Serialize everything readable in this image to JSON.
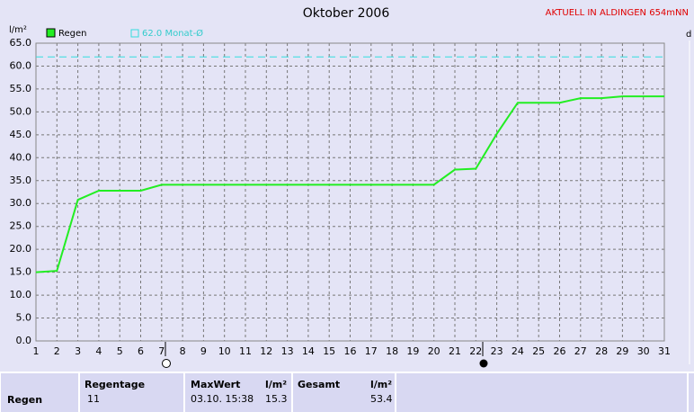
{
  "header": {
    "station": "AKTUELL IN ALDINGEN 654mNN",
    "corner": "d"
  },
  "chart_data": {
    "type": "line",
    "title": "Oktober 2006",
    "y_label": "l/m²",
    "x": [
      1,
      2,
      3,
      4,
      5,
      6,
      7,
      8,
      9,
      10,
      11,
      12,
      13,
      14,
      15,
      16,
      17,
      18,
      19,
      20,
      21,
      22,
      23,
      24,
      25,
      26,
      27,
      28,
      29,
      30,
      31
    ],
    "series": [
      {
        "name": "Regen",
        "color": "#22ee22",
        "values": [
          15.0,
          15.3,
          30.8,
          32.8,
          32.8,
          32.8,
          34.1,
          34.1,
          34.1,
          34.1,
          34.1,
          34.1,
          34.1,
          34.1,
          34.1,
          34.1,
          34.1,
          34.1,
          34.1,
          34.1,
          37.4,
          37.6,
          45.2,
          52.0,
          52.0,
          52.0,
          53.0,
          53.0,
          53.4,
          53.4,
          53.4
        ]
      }
    ],
    "reference_line": {
      "name": "62.0 Monat-Ø",
      "value": 62.0,
      "color": "#33dddd"
    },
    "xlim": [
      1,
      31
    ],
    "xticks": [
      1,
      2,
      3,
      4,
      5,
      6,
      7,
      8,
      9,
      10,
      11,
      12,
      13,
      14,
      15,
      16,
      17,
      18,
      19,
      20,
      21,
      22,
      23,
      24,
      25,
      26,
      27,
      28,
      29,
      30,
      31
    ],
    "ylim": [
      0,
      65
    ],
    "yticks": [
      {
        "value": 0,
        "label": "0.0"
      },
      {
        "value": 5,
        "label": "5.0"
      },
      {
        "value": 10,
        "label": "10.0"
      },
      {
        "value": 15,
        "label": "15.0"
      },
      {
        "value": 20,
        "label": "20.0"
      },
      {
        "value": 25,
        "label": "25.0"
      },
      {
        "value": 30,
        "label": "30.0"
      },
      {
        "value": 35,
        "label": "35.0"
      },
      {
        "value": 40,
        "label": "40.0"
      },
      {
        "value": 45,
        "label": "45.0"
      },
      {
        "value": 50,
        "label": "50.0"
      },
      {
        "value": 55,
        "label": "55.0"
      },
      {
        "value": 60,
        "label": "60.0"
      },
      {
        "value": 65,
        "label": "65.0"
      }
    ],
    "grid": true
  },
  "table": {
    "headers": [
      "Regentage",
      "MaxWert",
      "l/m²",
      "Gesamt",
      "l/m²"
    ],
    "rows": [
      {
        "label": "Regen",
        "values": [
          "11",
          "03.10. 15:38",
          15.3,
          53.4
        ]
      }
    ]
  }
}
